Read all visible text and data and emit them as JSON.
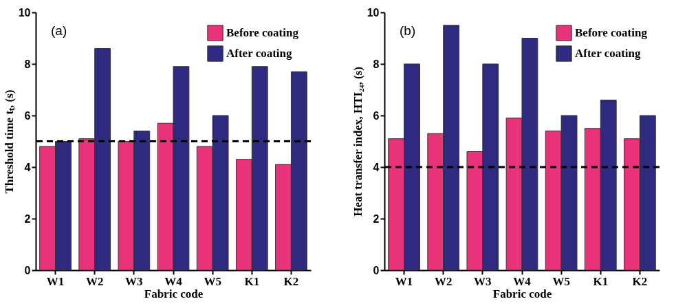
{
  "chart_data": [
    {
      "type": "bar",
      "categories": [
        "W1",
        "W2",
        "W3",
        "W4",
        "W5",
        "K1",
        "K2"
      ],
      "xlabel": "Fabric code",
      "ylabel": "Threshold time tₜ, (s)",
      "ylim": [
        0,
        10
      ],
      "yticks": [
        0,
        2,
        4,
        6,
        8,
        10
      ],
      "legend": "top right",
      "annotations": [
        "(a)"
      ],
      "series": [
        {
          "name": "Before coating",
          "color": "#e8327a",
          "values": [
            4.8,
            5.1,
            5.0,
            5.7,
            4.8,
            4.3,
            4.1
          ]
        },
        {
          "name": "After coating",
          "color": "#2e2a80",
          "values": [
            5.0,
            8.6,
            5.4,
            7.9,
            6.0,
            7.9,
            7.7
          ]
        }
      ],
      "ref_lines": [
        {
          "axis": "y",
          "value": 5,
          "line_style": "dashed"
        }
      ]
    },
    {
      "type": "bar",
      "categories": [
        "W1",
        "W2",
        "W3",
        "W4",
        "W5",
        "K1",
        "K2"
      ],
      "xlabel": "Fabric code",
      "ylabel": "Heat transfer index, HTI₂₄, (s)",
      "ylim": [
        0,
        10
      ],
      "yticks": [
        0,
        2,
        4,
        6,
        8,
        10
      ],
      "legend": "top right",
      "annotations": [
        "(b)"
      ],
      "series": [
        {
          "name": "Before coating",
          "color": "#e8327a",
          "values": [
            5.1,
            5.3,
            4.6,
            5.9,
            5.4,
            5.5,
            5.1
          ]
        },
        {
          "name": "After coating",
          "color": "#2e2a80",
          "values": [
            8.0,
            9.5,
            8.0,
            9.0,
            6.0,
            6.6,
            6.0
          ]
        }
      ],
      "ref_lines": [
        {
          "axis": "y",
          "value": 4,
          "line_style": "dashed"
        }
      ]
    }
  ]
}
